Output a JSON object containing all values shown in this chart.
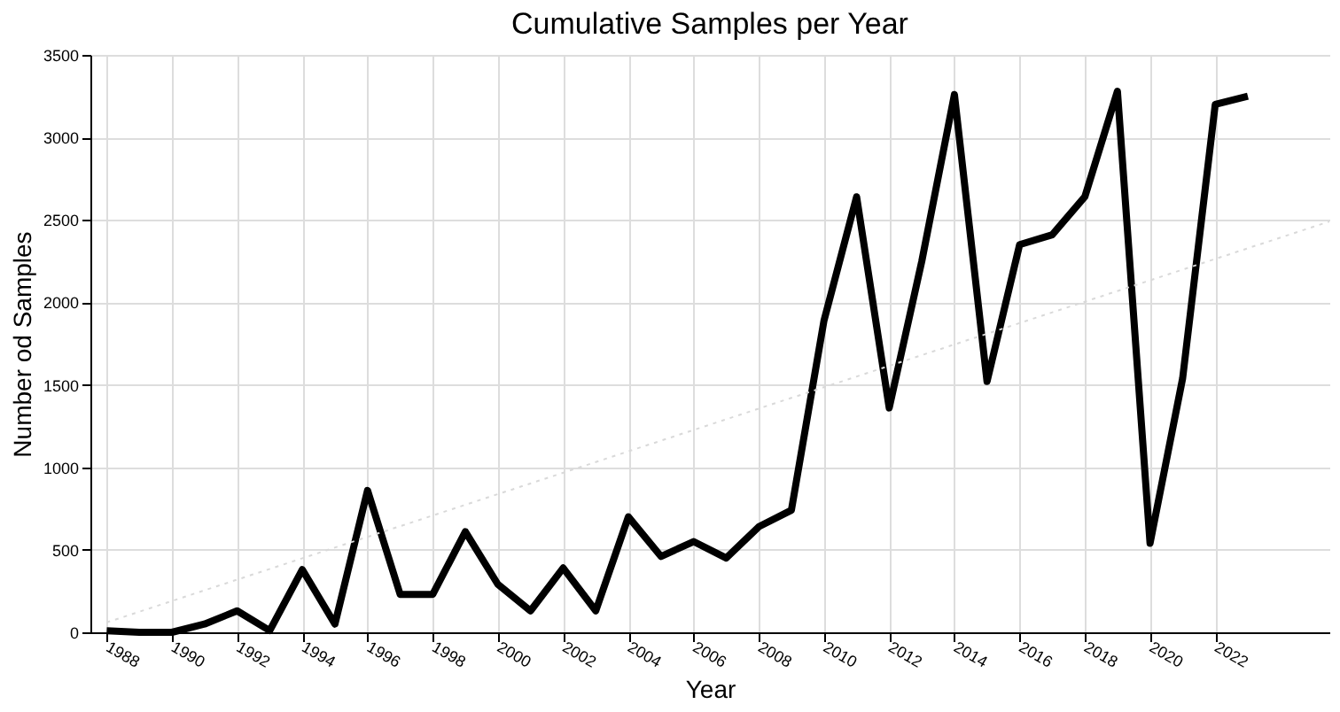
{
  "chart_data": {
    "type": "line",
    "title": "Cumulative Samples per Year",
    "xlabel": "Year",
    "ylabel": "Number od Samples",
    "x": [
      1988,
      1989,
      1990,
      1991,
      1992,
      1993,
      1994,
      1995,
      1996,
      1997,
      1998,
      1999,
      2000,
      2001,
      2002,
      2003,
      2004,
      2005,
      2006,
      2007,
      2008,
      2009,
      2010,
      2011,
      2012,
      2013,
      2014,
      2015,
      2016,
      2017,
      2018,
      2019,
      2020,
      2021,
      2022,
      2023
    ],
    "series": [
      {
        "color": "#000000",
        "values": [
          10,
          0,
          0,
          50,
          130,
          10,
          380,
          50,
          860,
          230,
          230,
          610,
          290,
          130,
          390,
          130,
          700,
          460,
          550,
          450,
          640,
          740,
          1890,
          2640,
          1360,
          2250,
          3260,
          1520,
          2350,
          2410,
          2640,
          3280,
          540,
          1540,
          3200,
          3250
        ]
      },
      {
        "color": "#d9d9d9",
        "type": "line",
        "line_style": "dotted",
        "x": [
          1988,
          2025.5
        ],
        "values": [
          60,
          2490
        ]
      }
    ],
    "xlim": [
      1987.5,
      2025.5
    ],
    "xticks": [
      1988,
      1990,
      1992,
      1994,
      1996,
      1998,
      2000,
      2002,
      2004,
      2006,
      2008,
      2010,
      2012,
      2014,
      2016,
      2018,
      2020,
      2022
    ],
    "ylim": [
      0,
      3500
    ],
    "yticks": [
      0,
      500,
      1000,
      1500,
      2000,
      2500,
      3000,
      3500
    ],
    "grid": true,
    "marker": "none",
    "line_style": "solid"
  }
}
